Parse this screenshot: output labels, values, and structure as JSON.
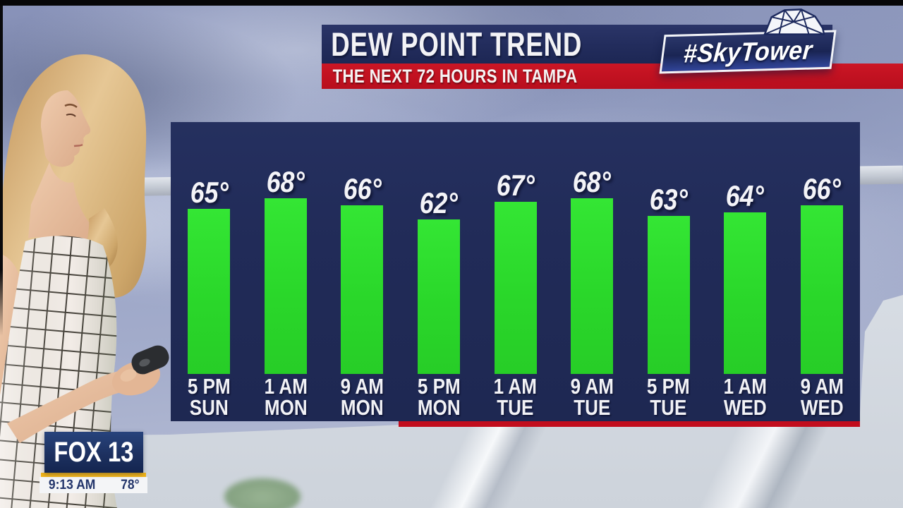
{
  "header": {
    "title": "DEW POINT TREND",
    "subtitle": "THE NEXT 72 HOURS IN TAMPA",
    "brand": "#SkyTower",
    "brand_icon": "geodesic-dome-icon"
  },
  "chart_data": {
    "type": "bar",
    "title": "DEW POINT TREND",
    "subtitle": "THE NEXT 72 HOURS IN TAMPA",
    "location": "Tampa",
    "series_label": "Dew point",
    "unit": "°F",
    "value_suffix": "°",
    "categories": [
      "5 PM SUN",
      "1 AM MON",
      "9 AM MON",
      "5 PM MON",
      "1 AM TUE",
      "9 AM TUE",
      "5 PM TUE",
      "1 AM WED",
      "9 AM WED"
    ],
    "labels": [
      {
        "time": "5 PM",
        "day": "SUN"
      },
      {
        "time": "1 AM",
        "day": "MON"
      },
      {
        "time": "9 AM",
        "day": "MON"
      },
      {
        "time": "5 PM",
        "day": "MON"
      },
      {
        "time": "1 AM",
        "day": "TUE"
      },
      {
        "time": "9 AM",
        "day": "TUE"
      },
      {
        "time": "5 PM",
        "day": "TUE"
      },
      {
        "time": "1 AM",
        "day": "WED"
      },
      {
        "time": "9 AM",
        "day": "WED"
      }
    ],
    "values": [
      65,
      68,
      66,
      62,
      67,
      68,
      63,
      64,
      66
    ],
    "bar_color": "#2bdb2b",
    "background": "#212b58",
    "grid": false,
    "legend": false
  },
  "station_bug": {
    "name": "FOX 13",
    "time": "9:13 AM",
    "temperature": "78°"
  },
  "colors": {
    "header_navy": "#222c5c",
    "banner_red": "#c1121f",
    "chart_navy": "#212b58",
    "bar_green": "#2bdb2b",
    "underline_red": "#c20d1d",
    "fox_navy": "#1d3160",
    "fox_gold": "#f2b418"
  }
}
